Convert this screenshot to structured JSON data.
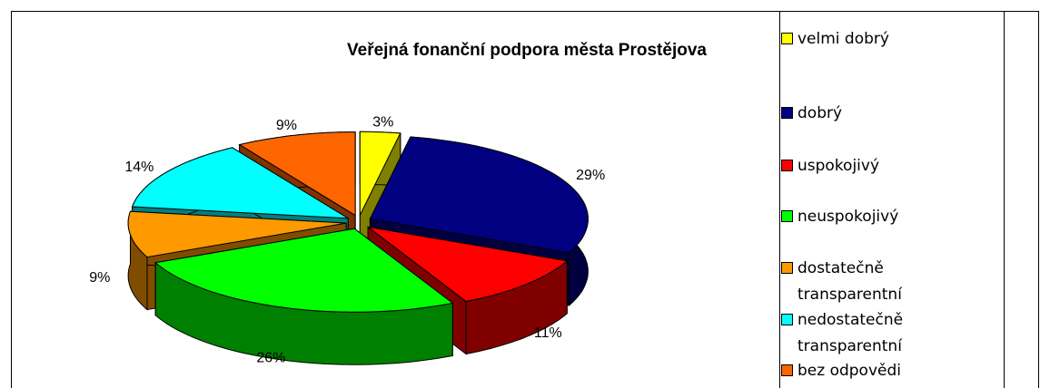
{
  "chart_data": {
    "type": "pie3d",
    "title": "Veřejná fonanční podpora města Prostějova",
    "categories": [
      "velmi dobrý",
      "dobrý",
      "uspokojivý",
      "neuspokojivý",
      "dostatečně transparentní",
      "nedostatečně transparentní",
      "bez odpovědi"
    ],
    "values": [
      3,
      29,
      11,
      26,
      9,
      14,
      9
    ],
    "value_labels": [
      "3%",
      "29%",
      "11%",
      "26%",
      "9%",
      "14%",
      "9%"
    ],
    "colors": [
      "#ffff00",
      "#000080",
      "#ff0000",
      "#00ff00",
      "#ff9900",
      "#00ffff",
      "#ff6600"
    ],
    "legend": "right"
  }
}
